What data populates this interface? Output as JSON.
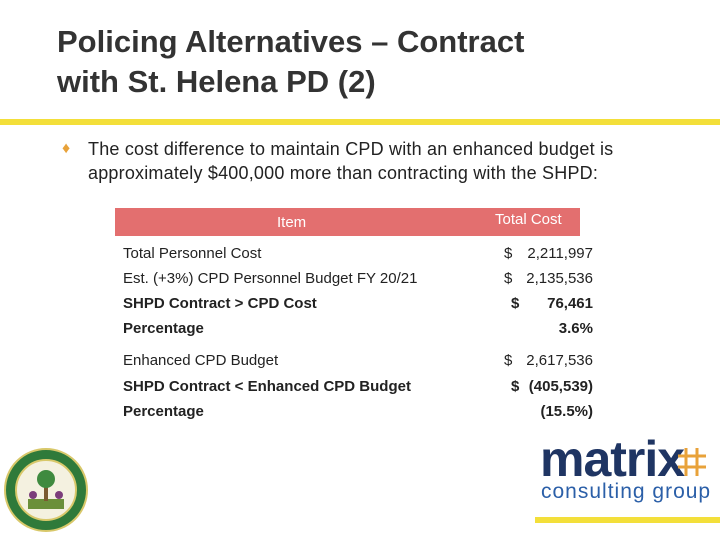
{
  "header": {
    "title_lines": [
      "Policing Alternatives – Contract",
      "with St. Helena PD (2)"
    ]
  },
  "bullet": {
    "lines": [
      "The cost difference to maintain CPD with an enhanced budget is",
      "approximately $400,000 more than contracting with the SHPD:"
    ]
  },
  "table": {
    "columns": [
      "Item",
      "Total Cost"
    ],
    "rows": [
      {
        "item": "Total Personnel Cost",
        "currency": "$",
        "amount": "2,211,997"
      },
      {
        "item": "Est. (+3%) CPD Personnel Budget FY 20/21",
        "currency": "$",
        "amount": "2,135,536"
      },
      {
        "item": "SHPD Contract > CPD Cost",
        "currency": "$",
        "amount": "76,461",
        "bold": true
      },
      {
        "item": "Percentage",
        "amount": "3.6%",
        "bold": true
      },
      {
        "item": "Enhanced CPD Budget",
        "currency": "$",
        "amount": "2,617,536"
      },
      {
        "item": "SHPD Contract < Enhanced CPD Budget",
        "currency": "$",
        "amount": "(405,539)",
        "bold": true
      },
      {
        "item": "Percentage",
        "amount": "(15.5%)",
        "bold": true
      }
    ]
  },
  "logo": {
    "name": "matrix",
    "tagline": "consulting group"
  }
}
